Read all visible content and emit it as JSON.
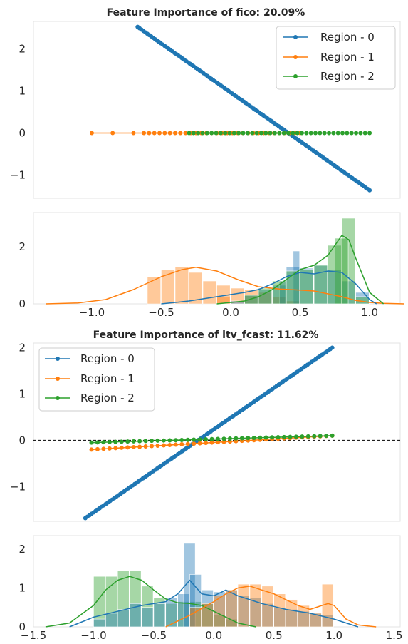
{
  "colors": {
    "region0": "#1f77b4",
    "region1": "#ff7f0e",
    "region2": "#2ca02c",
    "zero_line": "#000000",
    "frame": "#e3e3e3"
  },
  "chart_data": [
    {
      "type": "line",
      "title": "Feature Importance of fico: 20.09%",
      "xlabel": "",
      "ylabel": "",
      "xlim": [
        -1.42,
        1.22
      ],
      "ylim": [
        -1.55,
        2.65
      ],
      "yticks": [
        -1,
        0,
        1,
        2
      ],
      "xticks": [],
      "reference_line": {
        "y": 0,
        "style": "dashed"
      },
      "legend": {
        "position": "top-right",
        "entries": [
          "Region - 0",
          "Region - 1",
          "Region - 2"
        ]
      },
      "series": [
        {
          "name": "Region - 0",
          "color": "#1f77b4",
          "x": [
            -0.67,
            1.0
          ],
          "y": [
            2.52,
            -1.36
          ]
        },
        {
          "name": "Region - 1",
          "color": "#ff7f0e",
          "x": [
            -1.0,
            0.5
          ],
          "y": [
            0,
            0
          ]
        },
        {
          "name": "Region - 2",
          "color": "#2ca02c",
          "x": [
            -0.3,
            1.0
          ],
          "y": [
            0,
            0
          ]
        }
      ]
    },
    {
      "type": "histogram",
      "title": "",
      "xlim": [
        -1.42,
        1.22
      ],
      "ylim": [
        0,
        3.2
      ],
      "yticks": [
        0,
        2
      ],
      "xticks": [
        -1.0,
        -0.5,
        0.0,
        0.5,
        1.0
      ],
      "xtick_labels": [
        "−1.0",
        "−0.5",
        "0.0",
        "0.5",
        "1.0"
      ],
      "bin_width": 0.1,
      "series": [
        {
          "name": "Region - 1",
          "color": "#ff7f0e",
          "bin_lefts": [
            -0.1,
            -0.6,
            -0.5,
            -0.4,
            -0.3,
            -0.2,
            -0.1,
            0.0,
            0.1,
            0.2,
            0.3,
            0.4
          ],
          "bin_lefts_note": "",
          "values": [
            0.25,
            0.95,
            1.2,
            1.3,
            1.1,
            0.8,
            0.65,
            0.55,
            0.5,
            0.4,
            0.25,
            0.1
          ],
          "kde_x": [
            -1.33,
            -1.1,
            -0.9,
            -0.7,
            -0.5,
            -0.35,
            -0.25,
            -0.1,
            0.05,
            0.2,
            0.35,
            0.5,
            0.6,
            0.7,
            0.8,
            0.9,
            1.0,
            1.1,
            1.25
          ],
          "kde_y": [
            0.0,
            0.03,
            0.15,
            0.5,
            0.95,
            1.2,
            1.28,
            1.15,
            0.85,
            0.6,
            0.52,
            0.48,
            0.45,
            0.35,
            0.25,
            0.12,
            0.05,
            0.02,
            0.0
          ]
        },
        {
          "name": "Region - 0",
          "color": "#1f77b4",
          "values": [
            0.1,
            0.3,
            0.5,
            0.65,
            0.8,
            1.3,
            1.85,
            1.25,
            1.35,
            1.2,
            0.8,
            0.4
          ],
          "kde_x": [
            -0.5,
            -0.3,
            -0.1,
            0.1,
            0.2,
            0.3,
            0.4,
            0.5,
            0.6,
            0.7,
            0.8,
            0.9,
            1.0,
            1.05
          ],
          "kde_y": [
            0.0,
            0.1,
            0.25,
            0.4,
            0.5,
            0.7,
            0.95,
            1.1,
            1.05,
            1.15,
            1.1,
            0.7,
            0.15,
            0.0
          ]
        },
        {
          "name": "Region - 2",
          "color": "#2ca02c",
          "values": [
            0.3,
            0.55,
            0.8,
            1.15,
            1.2,
            1.35,
            2.05,
            3.0,
            2.3,
            0.25
          ],
          "kde_x": [
            -0.1,
            0.1,
            0.2,
            0.3,
            0.4,
            0.5,
            0.6,
            0.7,
            0.8,
            0.85,
            0.9,
            1.0,
            1.1
          ],
          "kde_y": [
            0.0,
            0.1,
            0.25,
            0.5,
            0.85,
            1.2,
            1.35,
            1.7,
            2.4,
            2.25,
            1.6,
            0.4,
            0.0
          ]
        }
      ]
    },
    {
      "type": "line",
      "title": "Feature Importance of itv_fcast: 11.62%",
      "xlabel": "",
      "ylabel": "",
      "xlim": [
        -1.42,
        1.55
      ],
      "ylim": [
        -1.75,
        2.1
      ],
      "yticks": [
        -1,
        0,
        1,
        2
      ],
      "xticks": [],
      "reference_line": {
        "y": 0,
        "style": "dashed"
      },
      "legend": {
        "position": "top-left",
        "entries": [
          "Region - 0",
          "Region - 1",
          "Region - 2"
        ]
      },
      "series": [
        {
          "name": "Region - 0",
          "color": "#1f77b4",
          "x": [
            -1.0,
            1.0
          ],
          "y": [
            -1.68,
            2.0
          ]
        },
        {
          "name": "Region - 1",
          "color": "#ff7f0e",
          "x": [
            -0.95,
            1.0
          ],
          "y": [
            -0.2,
            0.1
          ]
        },
        {
          "name": "Region - 2",
          "color": "#2ca02c",
          "x": [
            -0.95,
            1.0
          ],
          "y": [
            -0.05,
            0.1
          ]
        }
      ]
    },
    {
      "type": "histogram",
      "title": "",
      "xlim": [
        -1.5,
        1.55
      ],
      "ylim": [
        0,
        2.35
      ],
      "yticks": [
        0,
        1,
        2
      ],
      "xticks": [
        -1.5,
        -1.0,
        -0.5,
        0.0,
        0.5,
        1.0,
        1.5
      ],
      "xtick_labels": [
        "−1.5",
        "−1.0",
        "−0.5",
        "0.0",
        "0.5",
        "1.0",
        "1.5"
      ],
      "series": [
        {
          "name": "Region - 2",
          "color": "#2ca02c",
          "bin_lefts": [
            -1.0,
            -0.9,
            -0.8,
            -0.7,
            -0.6,
            -0.5,
            -0.4,
            -0.3,
            -0.2,
            -0.1,
            0.0,
            0.1
          ],
          "bin_width": 0.1,
          "values": [
            1.3,
            1.3,
            1.45,
            1.45,
            1.05,
            0.75,
            0.6,
            0.65,
            0.65,
            0.6,
            0.3,
            0.2
          ],
          "kde_x": [
            -1.4,
            -1.2,
            -1.0,
            -0.9,
            -0.8,
            -0.7,
            -0.6,
            -0.5,
            -0.4,
            -0.3,
            -0.2,
            -0.1,
            0.0,
            0.1,
            0.2,
            0.35
          ],
          "kde_y": [
            0.0,
            0.1,
            0.55,
            0.95,
            1.2,
            1.3,
            1.2,
            0.95,
            0.72,
            0.62,
            0.6,
            0.55,
            0.4,
            0.25,
            0.1,
            0.0
          ]
        },
        {
          "name": "Region - 0",
          "color": "#1f77b4",
          "bin_lefts": [
            -1.0,
            -0.9,
            -0.8,
            -0.7,
            -0.6,
            -0.5,
            -0.4,
            -0.3,
            -0.25,
            -0.2,
            -0.1,
            0.0,
            0.1,
            0.2,
            0.3,
            0.4,
            0.5,
            0.6,
            0.7,
            0.8,
            0.9
          ],
          "bin_width": 0.1,
          "values": [
            0.2,
            0.35,
            0.45,
            0.6,
            0.5,
            0.6,
            0.75,
            0.85,
            2.15,
            1.35,
            0.95,
            0.9,
            0.95,
            0.8,
            0.75,
            0.6,
            0.5,
            0.45,
            0.4,
            0.35,
            0.3
          ],
          "kde_x": [
            -1.2,
            -1.0,
            -0.8,
            -0.6,
            -0.4,
            -0.3,
            -0.2,
            -0.1,
            0.0,
            0.1,
            0.2,
            0.4,
            0.6,
            0.8,
            1.0,
            1.2
          ],
          "kde_y": [
            0.0,
            0.25,
            0.4,
            0.55,
            0.65,
            0.85,
            1.2,
            0.85,
            0.8,
            0.95,
            0.8,
            0.6,
            0.45,
            0.35,
            0.2,
            0.0
          ]
        },
        {
          "name": "Region - 1",
          "color": "#ff7f0e",
          "bin_lefts": [
            -0.2,
            -0.1,
            0.0,
            0.1,
            0.2,
            0.3,
            0.4,
            0.5,
            0.6,
            0.7,
            0.8,
            0.9
          ],
          "bin_width": 0.1,
          "values": [
            0.5,
            0.6,
            0.8,
            0.95,
            1.1,
            1.1,
            1.05,
            0.85,
            0.7,
            0.55,
            0.35,
            1.1
          ],
          "kde_x": [
            -0.4,
            -0.2,
            0.0,
            0.1,
            0.2,
            0.3,
            0.4,
            0.5,
            0.6,
            0.7,
            0.8,
            0.9,
            0.95,
            1.0,
            1.1,
            1.2,
            1.35
          ],
          "kde_y": [
            0.0,
            0.3,
            0.65,
            0.85,
            1.0,
            1.05,
            0.95,
            0.85,
            0.7,
            0.55,
            0.45,
            0.55,
            0.6,
            0.55,
            0.2,
            0.05,
            0.0
          ]
        }
      ]
    }
  ]
}
